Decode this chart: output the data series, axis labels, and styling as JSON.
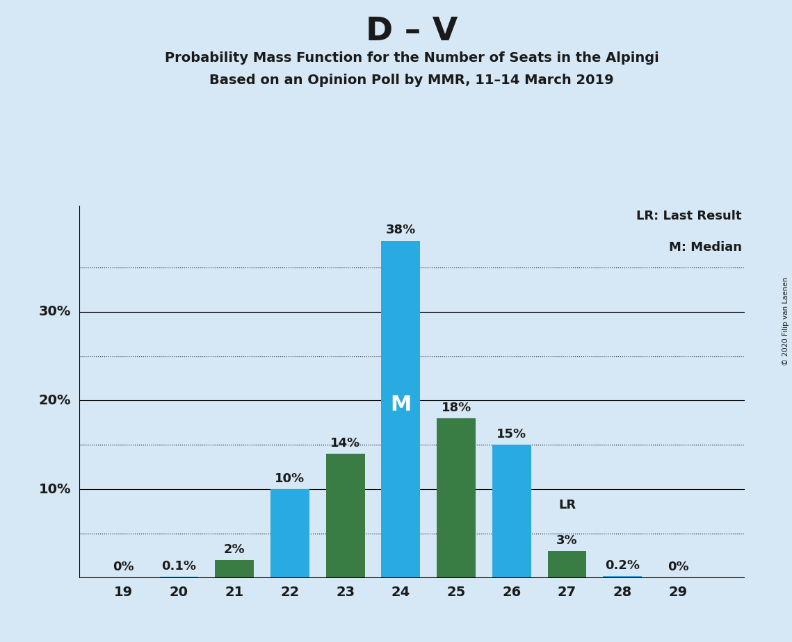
{
  "title": "D – V",
  "subtitle1": "Probability Mass Function for the Number of Seats in the Alpingi",
  "subtitle2": "Based on an Opinion Poll by MMR, 11–14 March 2019",
  "copyright": "© 2020 Filip van Laenen",
  "seats": [
    19,
    20,
    21,
    22,
    23,
    24,
    25,
    26,
    27,
    28,
    29
  ],
  "values": [
    0.0,
    0.1,
    2.0,
    10.0,
    14.0,
    38.0,
    18.0,
    15.0,
    3.0,
    0.2,
    0.0
  ],
  "labels": [
    "0%",
    "0.1%",
    "2%",
    "10%",
    "14%",
    "38%",
    "18%",
    "15%",
    "3%",
    "0.2%",
    "0%"
  ],
  "colors": [
    "#29ABE2",
    "#29ABE2",
    "#3A7D44",
    "#29ABE2",
    "#3A7D44",
    "#29ABE2",
    "#3A7D44",
    "#29ABE2",
    "#3A7D44",
    "#29ABE2",
    "#29ABE2"
  ],
  "median_seat": 24,
  "lr_seat": 27,
  "median_label": "M",
  "lr_label": "LR",
  "legend_lr": "LR: Last Result",
  "legend_m": "M: Median",
  "background_color": "#D6E8F5",
  "bar_color_cyan": "#29ABE2",
  "bar_color_green": "#3A7D44",
  "ylim": [
    0,
    42
  ],
  "solid_ticks": [
    10,
    20,
    30
  ],
  "dotted_ticks": [
    5,
    15,
    25,
    35
  ]
}
